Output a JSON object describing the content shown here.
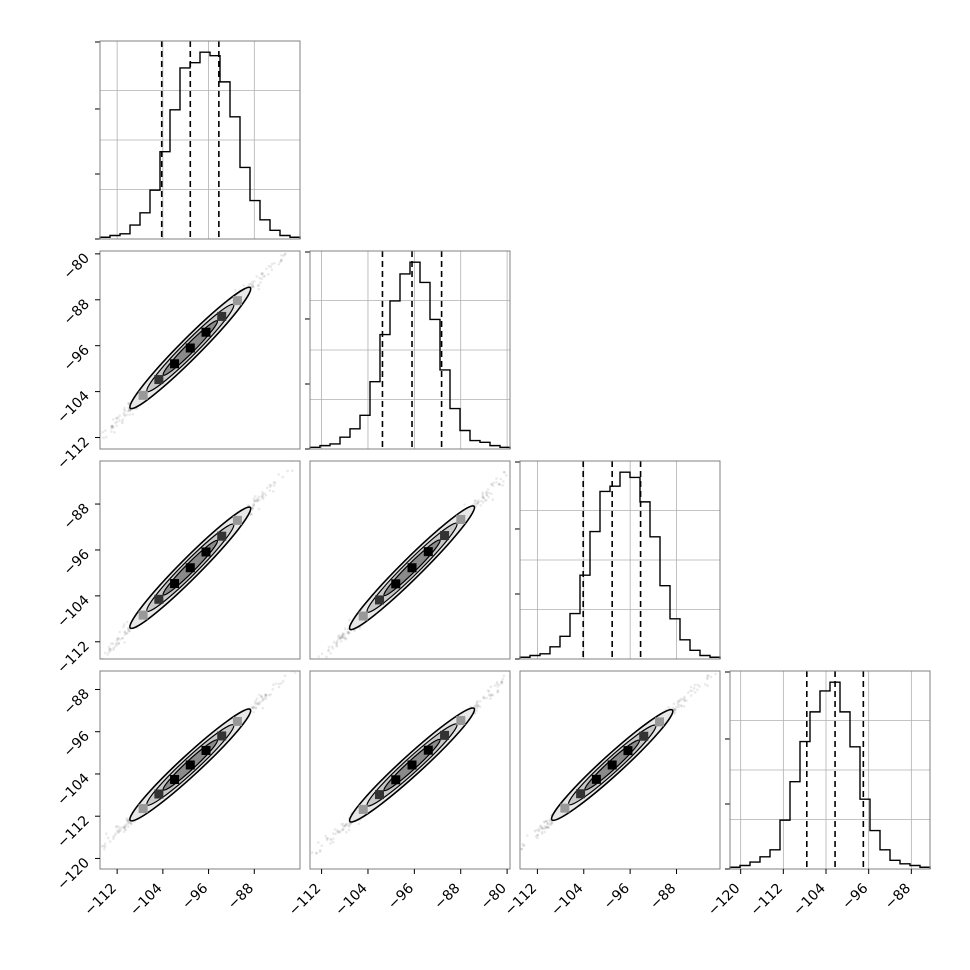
{
  "chart_data": {
    "type": "corner",
    "parameters": 4,
    "grid": true,
    "colors": {
      "hist": "#000000",
      "grid": "#b0b0b0",
      "frame": "#808080",
      "quantile": "#000000"
    },
    "tick_labels": {
      "diag_bottom_x": [
        [
          "-112",
          "-104",
          "-96",
          "-88"
        ],
        [
          "-112",
          "-104",
          "-96",
          "-88",
          "-80"
        ],
        [
          "-112",
          "-104",
          "-96",
          "-88"
        ],
        [
          "-120",
          "-112",
          "-104",
          "-96",
          "-88"
        ]
      ],
      "left_y": [
        null,
        [
          "-80",
          "-88",
          "-96",
          "-104",
          "-112"
        ],
        [
          "-88",
          "-96",
          "-104",
          "-112"
        ],
        [
          "-88",
          "-96",
          "-104",
          "-112",
          "-120"
        ]
      ]
    },
    "axis_ranges": [
      [
        -115,
        -80
      ],
      [
        -114,
        -79.5
      ],
      [
        -115,
        -80.5
      ],
      [
        -122,
        -84.5
      ]
    ],
    "tick_values": [
      [
        -112,
        -104,
        -96,
        -88
      ],
      [
        -112,
        -104,
        -96,
        -88,
        -80
      ],
      [
        -112,
        -104,
        -96,
        -88
      ],
      [
        -120,
        -112,
        -104,
        -96,
        -88
      ]
    ],
    "quantiles": [
      [
        -104.2,
        -99.2,
        -94.2
      ],
      [
        -101.5,
        -96.4,
        -91.3
      ],
      [
        -104.1,
        -99.1,
        -94.2
      ],
      [
        -107.6,
        -102.3,
        -97.0
      ]
    ],
    "histograms": [
      [
        1,
        2,
        3,
        8,
        15,
        28,
        50,
        74,
        98,
        101,
        107,
        105,
        90,
        70,
        41,
        22,
        11,
        5,
        2,
        1
      ],
      [
        1,
        2,
        3,
        7,
        12,
        20,
        40,
        68,
        88,
        104,
        111,
        99,
        77,
        47,
        24,
        11,
        5,
        4,
        2,
        1
      ],
      [
        1,
        2,
        3,
        7,
        13,
        26,
        48,
        73,
        96,
        99,
        107,
        104,
        90,
        70,
        42,
        23,
        11,
        5,
        2,
        1
      ],
      [
        1,
        2,
        4,
        7,
        11,
        28,
        50,
        73,
        90,
        102,
        107,
        90,
        70,
        40,
        22,
        11,
        5,
        3,
        2,
        1
      ]
    ]
  }
}
